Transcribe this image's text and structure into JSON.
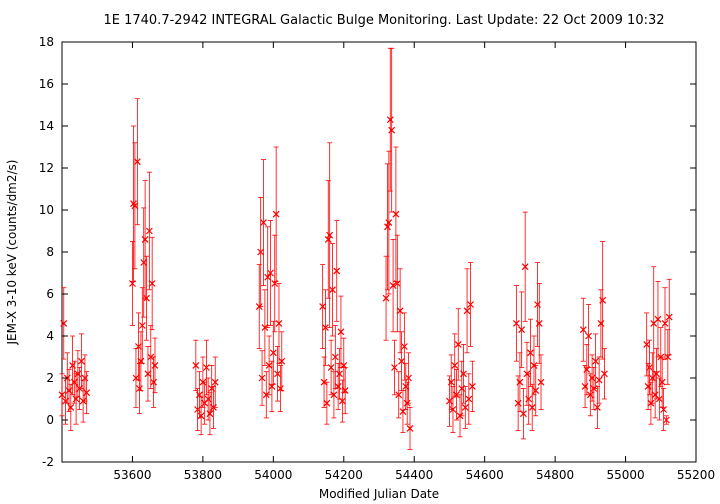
{
  "chart_data": {
    "type": "scatter",
    "title": "1E 1740.7-2942   INTEGRAL Galactic Bulge Monitoring.  Last Update: 22 Oct 2009 10:32",
    "xlabel": "Modified Julian Date",
    "ylabel": "JEM-X 3-10 keV (counts/dm2/s)",
    "xlim": [
      53400,
      55200
    ],
    "ylim": [
      -2,
      18
    ],
    "grid": false,
    "legend": "none",
    "x_ticks": [
      53600,
      53800,
      54000,
      54200,
      54400,
      54600,
      54800,
      55000,
      55200
    ],
    "y_ticks": [
      -2,
      0,
      2,
      4,
      6,
      8,
      10,
      12,
      14,
      16,
      18
    ],
    "marker": "x",
    "error_bars": true,
    "colors": {
      "points": "#ff0000",
      "error_bars": "#ff0000",
      "axes": "#000000"
    },
    "series": [
      {
        "points": [
          {
            "x": 53400,
            "y": 1.2,
            "err": 1.0
          },
          {
            "x": 53405,
            "y": 4.6,
            "err": 1.7
          },
          {
            "x": 53410,
            "y": 0.9,
            "err": 1.1
          },
          {
            "x": 53415,
            "y": 2.0,
            "err": 1.2
          },
          {
            "x": 53420,
            "y": 1.4,
            "err": 1.0
          },
          {
            "x": 53425,
            "y": 0.6,
            "err": 1.1
          },
          {
            "x": 53430,
            "y": 2.6,
            "err": 1.4
          },
          {
            "x": 53435,
            "y": 1.8,
            "err": 1.0
          },
          {
            "x": 53440,
            "y": 1.0,
            "err": 1.2
          },
          {
            "x": 53445,
            "y": 2.2,
            "err": 1.1
          },
          {
            "x": 53450,
            "y": 1.5,
            "err": 1.0
          },
          {
            "x": 53455,
            "y": 2.8,
            "err": 1.3
          },
          {
            "x": 53460,
            "y": 0.9,
            "err": 1.0
          },
          {
            "x": 53465,
            "y": 2.0,
            "err": 1.1
          },
          {
            "x": 53470,
            "y": 1.3,
            "err": 1.0
          },
          {
            "x": 53600,
            "y": 6.5,
            "err": 2.0
          },
          {
            "x": 53603,
            "y": 10.3,
            "err": 3.7
          },
          {
            "x": 53607,
            "y": 10.2,
            "err": 3.0
          },
          {
            "x": 53610,
            "y": 2.0,
            "err": 1.4
          },
          {
            "x": 53614,
            "y": 12.3,
            "err": 3.0
          },
          {
            "x": 53617,
            "y": 3.5,
            "err": 1.6
          },
          {
            "x": 53620,
            "y": 1.5,
            "err": 1.2
          },
          {
            "x": 53624,
            "y": 2.8,
            "err": 1.4
          },
          {
            "x": 53628,
            "y": 4.5,
            "err": 1.8
          },
          {
            "x": 53632,
            "y": 7.5,
            "err": 2.6
          },
          {
            "x": 53636,
            "y": 8.6,
            "err": 2.8
          },
          {
            "x": 53640,
            "y": 5.8,
            "err": 2.0
          },
          {
            "x": 53644,
            "y": 2.2,
            "err": 1.3
          },
          {
            "x": 53648,
            "y": 9.0,
            "err": 2.8
          },
          {
            "x": 53652,
            "y": 3.0,
            "err": 1.5
          },
          {
            "x": 53656,
            "y": 6.5,
            "err": 2.2
          },
          {
            "x": 53660,
            "y": 1.8,
            "err": 1.2
          },
          {
            "x": 53664,
            "y": 2.6,
            "err": 1.3
          },
          {
            "x": 53780,
            "y": 2.6,
            "err": 1.2
          },
          {
            "x": 53785,
            "y": 0.5,
            "err": 1.0
          },
          {
            "x": 53790,
            "y": 1.2,
            "err": 1.1
          },
          {
            "x": 53795,
            "y": 0.2,
            "err": 0.9
          },
          {
            "x": 53800,
            "y": 1.8,
            "err": 1.2
          },
          {
            "x": 53805,
            "y": 0.8,
            "err": 1.0
          },
          {
            "x": 53810,
            "y": 2.5,
            "err": 1.3
          },
          {
            "x": 53815,
            "y": 1.0,
            "err": 1.0
          },
          {
            "x": 53820,
            "y": 0.3,
            "err": 1.0
          },
          {
            "x": 53825,
            "y": 1.5,
            "err": 1.1
          },
          {
            "x": 53830,
            "y": 0.6,
            "err": 1.0
          },
          {
            "x": 53835,
            "y": 1.8,
            "err": 1.2
          },
          {
            "x": 53960,
            "y": 5.4,
            "err": 2.0
          },
          {
            "x": 53964,
            "y": 8.0,
            "err": 2.6
          },
          {
            "x": 53968,
            "y": 2.0,
            "err": 1.3
          },
          {
            "x": 53972,
            "y": 9.4,
            "err": 3.0
          },
          {
            "x": 53976,
            "y": 4.4,
            "err": 1.8
          },
          {
            "x": 53980,
            "y": 1.2,
            "err": 1.1
          },
          {
            "x": 53984,
            "y": 6.8,
            "err": 2.4
          },
          {
            "x": 53988,
            "y": 2.6,
            "err": 1.4
          },
          {
            "x": 53992,
            "y": 7.0,
            "err": 2.5
          },
          {
            "x": 53996,
            "y": 1.6,
            "err": 1.2
          },
          {
            "x": 54000,
            "y": 3.2,
            "err": 1.5
          },
          {
            "x": 54004,
            "y": 6.5,
            "err": 2.3
          },
          {
            "x": 54008,
            "y": 9.8,
            "err": 3.2
          },
          {
            "x": 54012,
            "y": 2.2,
            "err": 1.3
          },
          {
            "x": 54016,
            "y": 4.6,
            "err": 1.9
          },
          {
            "x": 54020,
            "y": 1.5,
            "err": 1.1
          },
          {
            "x": 54024,
            "y": 2.8,
            "err": 1.4
          },
          {
            "x": 54140,
            "y": 5.4,
            "err": 2.0
          },
          {
            "x": 54144,
            "y": 1.8,
            "err": 1.2
          },
          {
            "x": 54148,
            "y": 4.4,
            "err": 1.8
          },
          {
            "x": 54152,
            "y": 0.8,
            "err": 1.0
          },
          {
            "x": 54156,
            "y": 8.6,
            "err": 2.8
          },
          {
            "x": 54160,
            "y": 8.8,
            "err": 4.4
          },
          {
            "x": 54164,
            "y": 2.5,
            "err": 1.3
          },
          {
            "x": 54168,
            "y": 6.2,
            "err": 2.2
          },
          {
            "x": 54172,
            "y": 1.2,
            "err": 1.1
          },
          {
            "x": 54176,
            "y": 3.0,
            "err": 1.5
          },
          {
            "x": 54180,
            "y": 7.1,
            "err": 2.4
          },
          {
            "x": 54184,
            "y": 1.6,
            "err": 1.1
          },
          {
            "x": 54188,
            "y": 2.2,
            "err": 1.2
          },
          {
            "x": 54192,
            "y": 4.2,
            "err": 1.7
          },
          {
            "x": 54196,
            "y": 0.9,
            "err": 1.0
          },
          {
            "x": 54200,
            "y": 2.6,
            "err": 1.3
          },
          {
            "x": 54204,
            "y": 1.4,
            "err": 1.1
          },
          {
            "x": 54320,
            "y": 5.8,
            "err": 2.0
          },
          {
            "x": 54324,
            "y": 9.2,
            "err": 3.0
          },
          {
            "x": 54328,
            "y": 9.4,
            "err": 3.4
          },
          {
            "x": 54332,
            "y": 14.3,
            "err": 3.4
          },
          {
            "x": 54336,
            "y": 13.8,
            "err": 3.9
          },
          {
            "x": 54340,
            "y": 6.4,
            "err": 2.2
          },
          {
            "x": 54344,
            "y": 2.5,
            "err": 1.3
          },
          {
            "x": 54348,
            "y": 9.8,
            "err": 3.2
          },
          {
            "x": 54352,
            "y": 6.5,
            "err": 2.3
          },
          {
            "x": 54356,
            "y": 1.2,
            "err": 1.1
          },
          {
            "x": 54360,
            "y": 5.2,
            "err": 2.0
          },
          {
            "x": 54364,
            "y": 2.8,
            "err": 1.4
          },
          {
            "x": 54368,
            "y": 0.4,
            "err": 1.0
          },
          {
            "x": 54372,
            "y": 3.5,
            "err": 1.6
          },
          {
            "x": 54376,
            "y": 1.6,
            "err": 1.1
          },
          {
            "x": 54380,
            "y": 0.8,
            "err": 1.0
          },
          {
            "x": 54384,
            "y": 2.0,
            "err": 1.2
          },
          {
            "x": 54388,
            "y": -0.4,
            "err": 1.0
          },
          {
            "x": 54500,
            "y": 0.9,
            "err": 1.2
          },
          {
            "x": 54505,
            "y": 1.8,
            "err": 1.3
          },
          {
            "x": 54510,
            "y": 0.5,
            "err": 1.1
          },
          {
            "x": 54515,
            "y": 2.6,
            "err": 1.5
          },
          {
            "x": 54520,
            "y": 1.2,
            "err": 1.2
          },
          {
            "x": 54525,
            "y": 3.6,
            "err": 1.7
          },
          {
            "x": 54530,
            "y": 0.2,
            "err": 1.0
          },
          {
            "x": 54535,
            "y": 1.5,
            "err": 1.3
          },
          {
            "x": 54540,
            "y": 2.2,
            "err": 1.4
          },
          {
            "x": 54545,
            "y": 0.6,
            "err": 1.0
          },
          {
            "x": 54550,
            "y": 5.2,
            "err": 2.0
          },
          {
            "x": 54555,
            "y": 1.0,
            "err": 1.2
          },
          {
            "x": 54560,
            "y": 5.5,
            "err": 2.0
          },
          {
            "x": 54565,
            "y": 1.6,
            "err": 1.2
          },
          {
            "x": 54690,
            "y": 4.6,
            "err": 1.8
          },
          {
            "x": 54695,
            "y": 0.8,
            "err": 1.3
          },
          {
            "x": 54700,
            "y": 1.8,
            "err": 1.4
          },
          {
            "x": 54705,
            "y": 4.3,
            "err": 1.8
          },
          {
            "x": 54710,
            "y": 0.3,
            "err": 1.2
          },
          {
            "x": 54715,
            "y": 7.3,
            "err": 2.6
          },
          {
            "x": 54720,
            "y": 2.2,
            "err": 1.5
          },
          {
            "x": 54725,
            "y": 1.0,
            "err": 1.2
          },
          {
            "x": 54730,
            "y": 3.2,
            "err": 1.6
          },
          {
            "x": 54735,
            "y": 0.6,
            "err": 1.1
          },
          {
            "x": 54740,
            "y": 2.6,
            "err": 1.4
          },
          {
            "x": 54745,
            "y": 1.4,
            "err": 1.2
          },
          {
            "x": 54750,
            "y": 5.5,
            "err": 2.0
          },
          {
            "x": 54755,
            "y": 4.6,
            "err": 1.9
          },
          {
            "x": 54760,
            "y": 1.8,
            "err": 1.3
          },
          {
            "x": 54880,
            "y": 4.3,
            "err": 1.5
          },
          {
            "x": 54885,
            "y": 1.6,
            "err": 1.0
          },
          {
            "x": 54890,
            "y": 2.4,
            "err": 1.2
          },
          {
            "x": 54895,
            "y": 4.0,
            "err": 1.5
          },
          {
            "x": 54900,
            "y": 1.2,
            "err": 1.0
          },
          {
            "x": 54905,
            "y": 2.0,
            "err": 1.1
          },
          {
            "x": 54910,
            "y": 1.5,
            "err": 1.0
          },
          {
            "x": 54915,
            "y": 2.8,
            "err": 1.3
          },
          {
            "x": 54920,
            "y": 0.6,
            "err": 1.0
          },
          {
            "x": 54925,
            "y": 1.9,
            "err": 1.1
          },
          {
            "x": 54930,
            "y": 4.6,
            "err": 1.6
          },
          {
            "x": 54935,
            "y": 5.7,
            "err": 2.8
          },
          {
            "x": 54940,
            "y": 2.2,
            "err": 1.2
          },
          {
            "x": 55060,
            "y": 3.6,
            "err": 1.5
          },
          {
            "x": 55064,
            "y": 1.6,
            "err": 1.1
          },
          {
            "x": 55068,
            "y": 2.5,
            "err": 1.3
          },
          {
            "x": 55072,
            "y": 0.8,
            "err": 1.0
          },
          {
            "x": 55076,
            "y": 2.0,
            "err": 1.2
          },
          {
            "x": 55080,
            "y": 4.6,
            "err": 2.7
          },
          {
            "x": 55084,
            "y": 1.2,
            "err": 1.1
          },
          {
            "x": 55088,
            "y": 2.2,
            "err": 1.2
          },
          {
            "x": 55092,
            "y": 4.8,
            "err": 1.8
          },
          {
            "x": 55096,
            "y": 1.0,
            "err": 1.0
          },
          {
            "x": 55100,
            "y": 3.0,
            "err": 1.4
          },
          {
            "x": 55104,
            "y": 1.8,
            "err": 1.2
          },
          {
            "x": 55108,
            "y": 0.5,
            "err": 1.0
          },
          {
            "x": 55112,
            "y": 4.6,
            "err": 1.7
          },
          {
            "x": 55116,
            "y": 0.0,
            "err": 0.2
          },
          {
            "x": 55120,
            "y": 3.0,
            "err": 1.3
          },
          {
            "x": 55124,
            "y": 4.9,
            "err": 1.8
          }
        ]
      }
    ]
  }
}
